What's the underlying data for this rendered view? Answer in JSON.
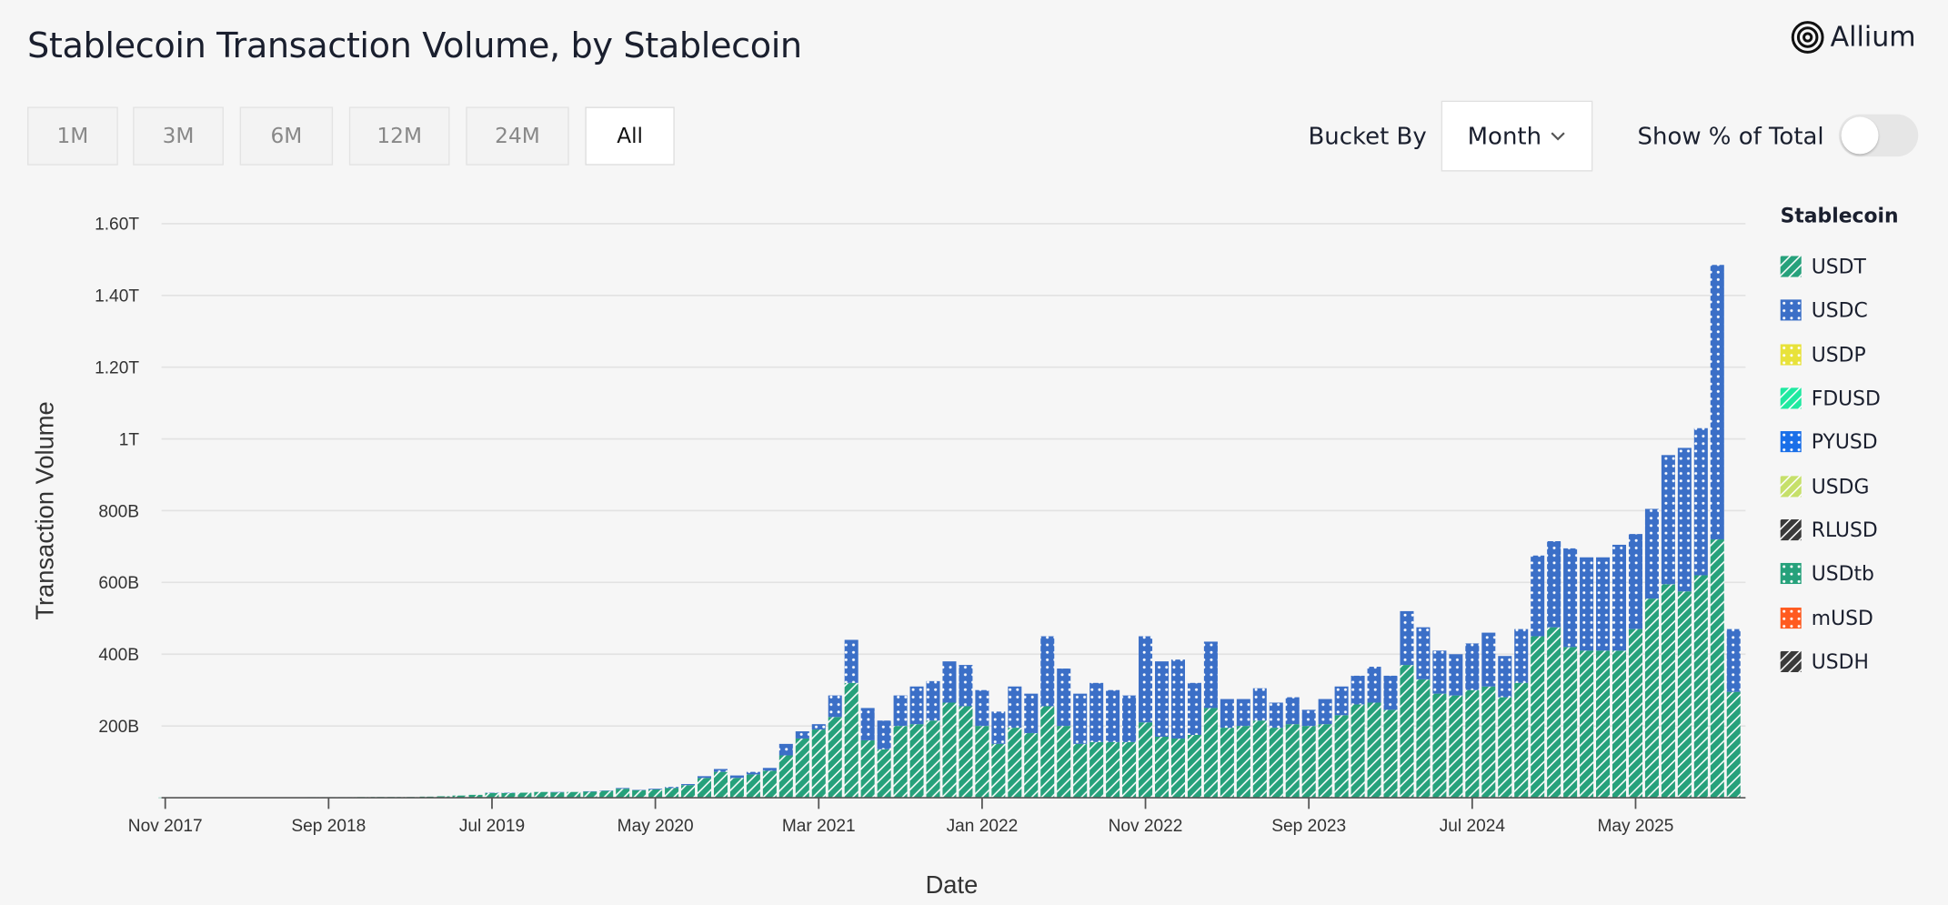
{
  "title": "Stablecoin Transaction Volume, by Stablecoin",
  "logo": {
    "text": "Allium"
  },
  "range_buttons": [
    {
      "label": "1M",
      "active": false
    },
    {
      "label": "3M",
      "active": false
    },
    {
      "label": "6M",
      "active": false
    },
    {
      "label": "12M",
      "active": false
    },
    {
      "label": "24M",
      "active": false
    },
    {
      "label": "All",
      "active": true
    }
  ],
  "bucket": {
    "label": "Bucket By",
    "value": "Month"
  },
  "percent_toggle": {
    "label": "Show % of Total",
    "on": false
  },
  "chart_data": {
    "type": "bar",
    "stacked": true,
    "xlabel": "Date",
    "ylabel": "Transaction Volume",
    "ylim": [
      0,
      1600
    ],
    "y_unit": "B",
    "yticks": [
      {
        "v": 200,
        "label": "200B"
      },
      {
        "v": 400,
        "label": "400B"
      },
      {
        "v": 600,
        "label": "600B"
      },
      {
        "v": 800,
        "label": "800B"
      },
      {
        "v": 1000,
        "label": "1T"
      },
      {
        "v": 1200,
        "label": "1.20T"
      },
      {
        "v": 1400,
        "label": "1.40T"
      },
      {
        "v": 1600,
        "label": "1.60T"
      }
    ],
    "xticks": [
      "Nov 2017",
      "Sep 2018",
      "Jul 2019",
      "May 2020",
      "Mar 2021",
      "Jan 2022",
      "Nov 2022",
      "Sep 2023",
      "Jul 2024",
      "May 2025"
    ],
    "grid": true,
    "legend_title": "Stablecoin",
    "legend_position": "right",
    "start_month": "Nov 2017",
    "end_month": "Nov 2025",
    "series": [
      {
        "name": "USDT",
        "color": "#26a17b",
        "pattern": "stripes",
        "values": [
          0.5,
          0.5,
          0.6,
          0.8,
          1,
          1,
          1,
          1.2,
          1.2,
          1.5,
          1.5,
          1.5,
          1.8,
          2,
          2,
          2,
          3,
          4,
          6,
          8,
          13,
          13,
          14,
          16,
          15,
          16,
          17,
          19,
          25,
          21,
          23,
          27,
          35,
          55,
          72,
          55,
          65,
          75,
          118,
          165,
          190,
          225,
          320,
          160,
          135,
          200,
          205,
          215,
          265,
          255,
          200,
          150,
          195,
          180,
          255,
          200,
          150,
          155,
          155,
          155,
          210,
          170,
          165,
          175,
          250,
          195,
          200,
          215,
          195,
          205,
          200,
          205,
          230,
          260,
          265,
          245,
          370,
          330,
          290,
          285,
          300,
          310,
          280,
          320,
          450,
          475,
          420,
          410,
          410,
          410,
          470,
          555,
          595,
          575,
          620,
          720,
          295
        ]
      },
      {
        "name": "USDC",
        "color": "#3b6fc7",
        "pattern": "dots",
        "values": [
          0,
          0,
          0,
          0,
          0,
          0,
          0,
          0,
          0,
          0,
          0,
          0,
          0,
          0,
          0,
          0,
          0,
          0,
          0,
          0,
          1,
          1,
          0,
          0,
          1,
          0,
          1,
          1,
          2,
          1,
          2,
          3,
          3,
          5,
          8,
          7,
          7,
          8,
          32,
          20,
          15,
          60,
          120,
          90,
          80,
          85,
          105,
          110,
          115,
          115,
          100,
          90,
          115,
          110,
          195,
          160,
          140,
          165,
          145,
          130,
          240,
          210,
          220,
          145,
          185,
          80,
          75,
          90,
          70,
          75,
          45,
          70,
          80,
          80,
          100,
          95,
          150,
          145,
          120,
          115,
          130,
          150,
          115,
          150,
          225,
          240,
          275,
          260,
          260,
          295,
          265,
          250,
          360,
          400,
          410,
          765,
          175
        ]
      },
      {
        "name": "USDP",
        "color": "#e8e23a",
        "pattern": "dots",
        "values": []
      },
      {
        "name": "FDUSD",
        "color": "#1de9a0",
        "pattern": "stripes",
        "values": []
      },
      {
        "name": "PYUSD",
        "color": "#1a6fe8",
        "pattern": "dots",
        "values": []
      },
      {
        "name": "USDG",
        "color": "#c6e06a",
        "pattern": "stripes",
        "values": []
      },
      {
        "name": "RLUSD",
        "color": "#3a3a3a",
        "pattern": "stripes",
        "values": []
      },
      {
        "name": "USDtb",
        "color": "#26a17b",
        "pattern": "dots",
        "values": []
      },
      {
        "name": "mUSD",
        "color": "#ff5a1f",
        "pattern": "dots",
        "values": []
      },
      {
        "name": "USDH",
        "color": "#3a3a3a",
        "pattern": "stripes",
        "values": []
      }
    ]
  }
}
